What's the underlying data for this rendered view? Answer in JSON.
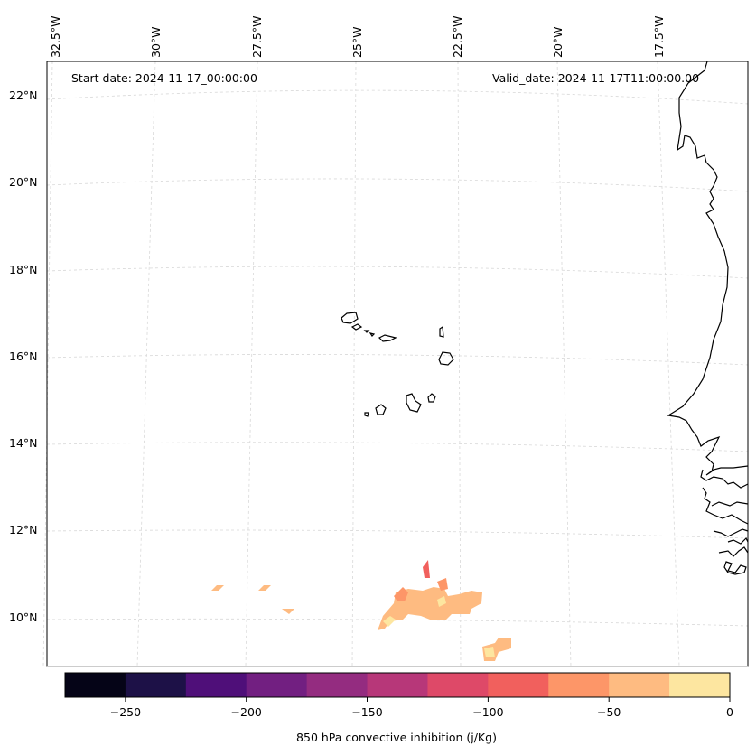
{
  "header": {
    "start_date": "Start date: 2024-11-17_00:00:00",
    "valid_date": "Valid_date: 2024-11-17T11:00:00.00"
  },
  "axes": {
    "lon_labels": [
      "32.5°W",
      "30°W",
      "27.5°W",
      "25°W",
      "22.5°W",
      "20°W",
      "17.5°W"
    ],
    "lat_labels": [
      "22°N",
      "20°N",
      "18°N",
      "16°N",
      "14°N",
      "12°N",
      "10°N"
    ]
  },
  "colorbar": {
    "label": "850 hPa convective inhibition (j/Kg)",
    "ticks": [
      "−250",
      "−200",
      "−150",
      "−100",
      "−50",
      "0"
    ],
    "bins": [
      {
        "from": -275,
        "to": -250,
        "color": "#050417"
      },
      {
        "from": -250,
        "to": -225,
        "color": "#1d1147"
      },
      {
        "from": -225,
        "to": -200,
        "color": "#4f0f79"
      },
      {
        "from": -200,
        "to": -175,
        "color": "#721f81"
      },
      {
        "from": -175,
        "to": -150,
        "color": "#942c80"
      },
      {
        "from": -150,
        "to": -125,
        "color": "#b73779"
      },
      {
        "from": -125,
        "to": -100,
        "color": "#de4968"
      },
      {
        "from": -100,
        "to": -75,
        "color": "#f1605d"
      },
      {
        "from": -75,
        "to": -50,
        "color": "#fd9668"
      },
      {
        "from": -50,
        "to": -25,
        "color": "#febb81"
      },
      {
        "from": -25,
        "to": 0,
        "color": "#fde6a0"
      }
    ]
  },
  "colors": {
    "cin_light": "#febb81",
    "cin_mid": "#fd9668",
    "cin_strong": "#f1605d",
    "cin_weak": "#fde6a0",
    "coast": "#000000",
    "grid": "#cccccc"
  }
}
